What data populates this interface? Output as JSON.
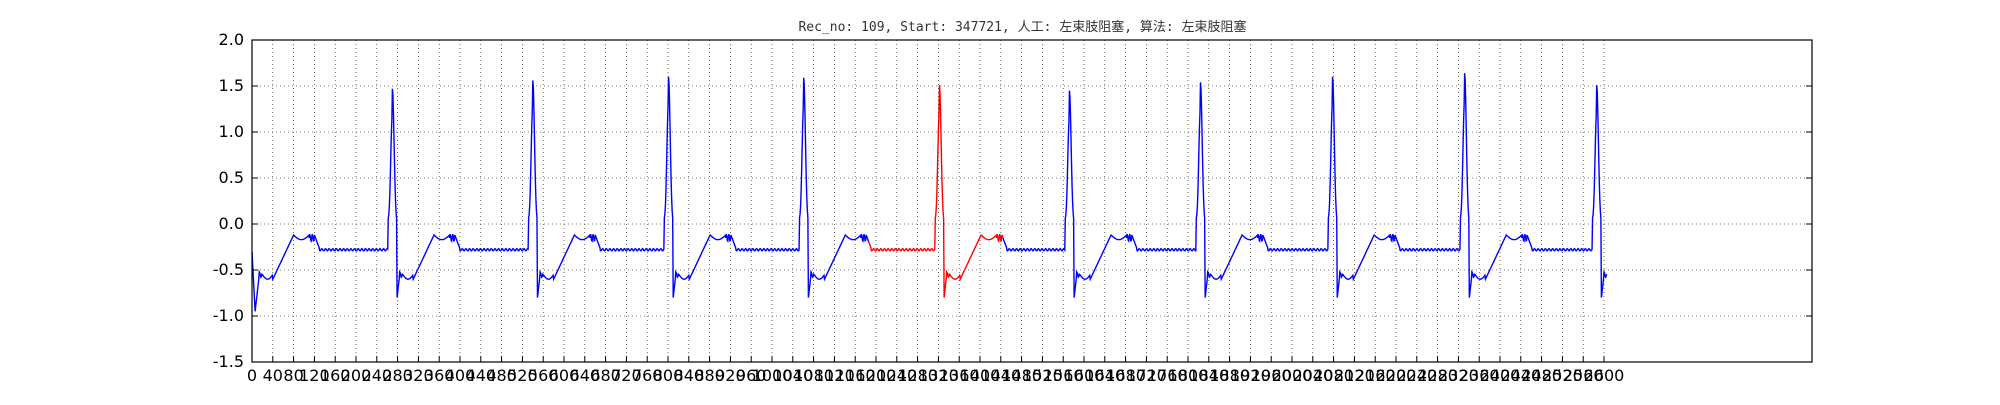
{
  "chart_data": {
    "type": "line",
    "title": "Rec_no: 109, Start: 347721, 人工: 左束肢阻塞, 算法: 左束肢阻塞",
    "xlabel": "",
    "ylabel": "",
    "xlim": [
      0,
      3000
    ],
    "ylim": [
      -1.5,
      2.0
    ],
    "yticks": [
      "2.0",
      "1.5",
      "1.0",
      "0.5",
      "0.0",
      "-0.5",
      "-1.0",
      "-1.5"
    ],
    "xtick_step": 40,
    "xtick_last": 2600,
    "grid": true,
    "grid_style": "dotted",
    "beat": {
      "period": 261,
      "r_peak_offset": 0,
      "qrs_start_offset": -4,
      "segment_start_offset": -280,
      "series_color": "#0000ff",
      "highlight_color": "#ff0000"
    },
    "r_peaks": [
      {
        "x": 270,
        "amp": 1.47
      },
      {
        "x": 540,
        "amp": 1.56
      },
      {
        "x": 801,
        "amp": 1.6
      },
      {
        "x": 1061,
        "amp": 1.59
      },
      {
        "x": 1322,
        "amp": 1.51,
        "highlight": true
      },
      {
        "x": 1572,
        "amp": 1.45
      },
      {
        "x": 1824,
        "amp": 1.54
      },
      {
        "x": 2078,
        "amp": 1.6
      },
      {
        "x": 2332,
        "amp": 1.64
      },
      {
        "x": 2586,
        "amp": 1.51
      }
    ],
    "highlight_range": [
      1186,
      1444
    ],
    "end_x": 2605
  }
}
